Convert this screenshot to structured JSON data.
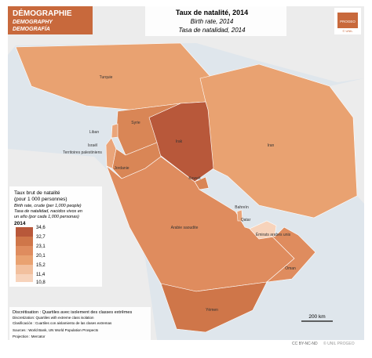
{
  "header": {
    "theme": [
      "DÉMOGRAPHIE",
      "DEMOGRAPHY",
      "DEMOGRAFÍA"
    ],
    "title": "Taux de natalité, 2014",
    "subtitles": [
      "Birth rate, 2014",
      "Tasa de natalidad, 2014"
    ],
    "logo": "PROGEO",
    "logo_sub": "© UNIL"
  },
  "countries": [
    "Turquie",
    "Syrie",
    "Liban",
    "Israël",
    "Territoires palestiniens",
    "Jordanie",
    "Irak",
    "Iran",
    "Koweït",
    "Bahreïn",
    "Qatar",
    "Émirats arabes unis",
    "Oman",
    "Arabie saoudite",
    "Yémen"
  ],
  "legend": {
    "title": [
      "Taux brut de natalité",
      "(pour 1 000 personnes)",
      "Birth rate, crude (per 1,000 people)",
      "Tasa de natalidad, nacidos vivos en",
      "un año (por cada 1,000 personas)"
    ],
    "year": "2014",
    "classes": [
      "34,6",
      "32,7",
      "23,1",
      "20,1",
      "15,2",
      "11,4",
      "10,8"
    ]
  },
  "scale": "200 km",
  "footer": {
    "lines": [
      "Discrétisation : Quartiles avec isolement des classes extrêmes",
      "Discretization: Quartiles with extreme class isolation",
      "Clasificación : Cuartiles con aislamiento de las clases extremas",
      "Sources : World Bank, UN World Population Prospects",
      "Projection : Mercator"
    ],
    "license": "CC BY-NC-ND",
    "copyright": "© UNIL PROGEO"
  }
}
